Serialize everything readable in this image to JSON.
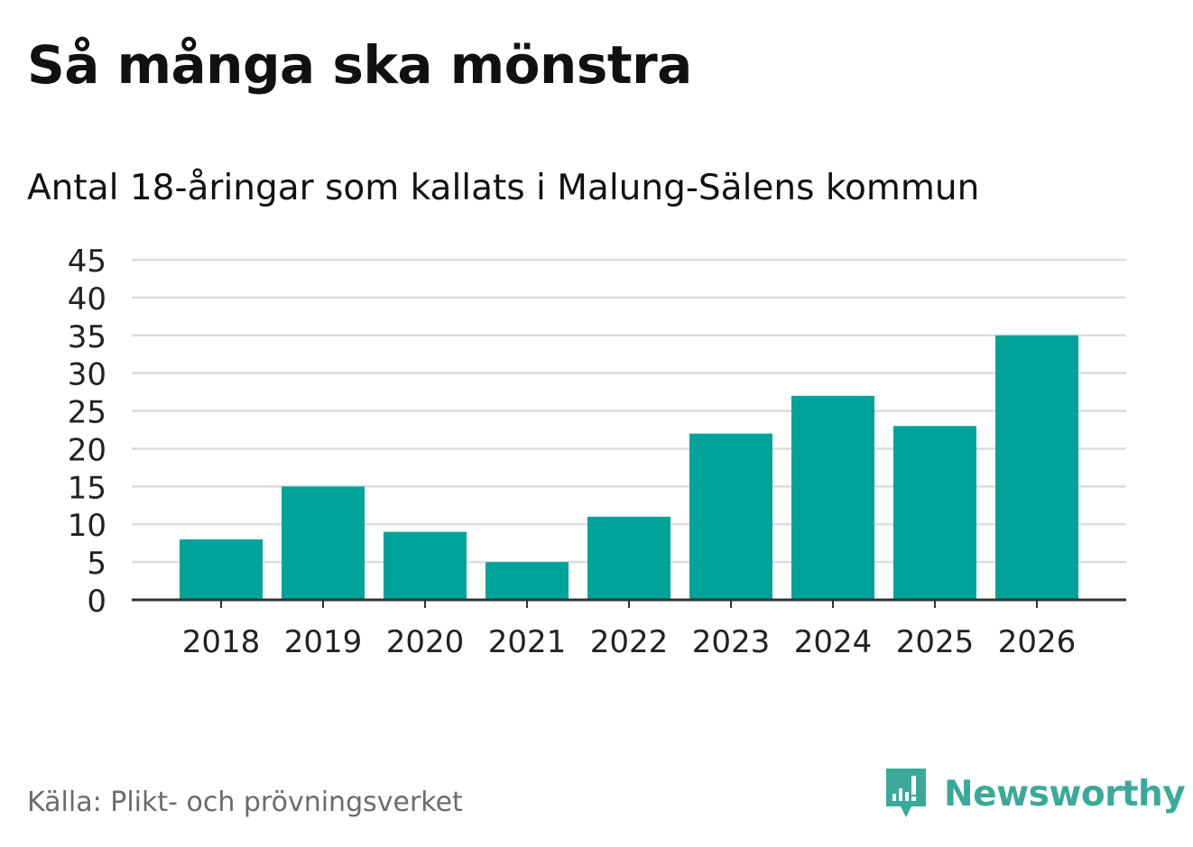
{
  "title": "Så många ska mönstra",
  "subtitle": "Antal 18-åringar som kallats i Malung-Sälens kommun",
  "source": "Källa: Plikt- och prövningsverket",
  "logo": {
    "text": "Newsworthy",
    "icon": "newsworthy-chart-bubble-icon"
  },
  "colors": {
    "bar": "#00a39a",
    "grid": "#dcdcdc",
    "axis": "#333333",
    "logo": "#3aa99a"
  },
  "chart_data": {
    "type": "bar",
    "categories": [
      "2018",
      "2019",
      "2020",
      "2021",
      "2022",
      "2023",
      "2024",
      "2025",
      "2026"
    ],
    "values": [
      8,
      15,
      9,
      5,
      11,
      22,
      27,
      23,
      35
    ],
    "ylim": [
      0,
      45
    ],
    "yticks": [
      0,
      5,
      10,
      15,
      20,
      25,
      30,
      35,
      40,
      45
    ],
    "grid": true,
    "legend": "none"
  }
}
